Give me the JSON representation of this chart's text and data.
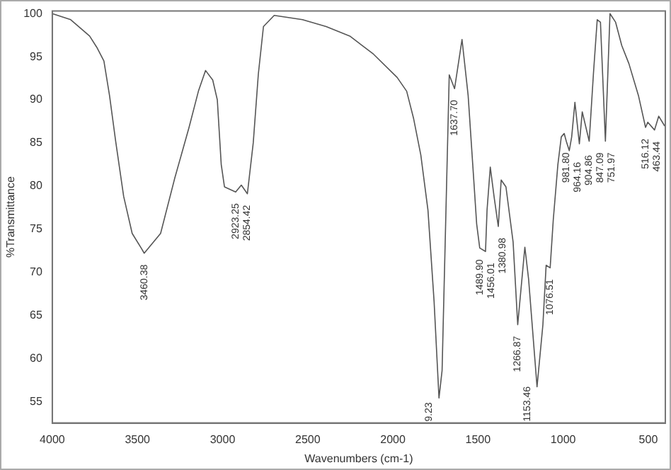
{
  "chart_data": {
    "type": "line",
    "xlabel": "Wavenumbers (cm-1)",
    "ylabel": "%Transmittance",
    "xlim": [
      4000,
      400
    ],
    "xticks": [
      4000,
      3500,
      3000,
      2500,
      2000,
      1500,
      1000,
      500
    ],
    "ylim": [
      52.5,
      100.3
    ],
    "yticks": [
      55,
      60,
      65,
      70,
      75,
      80,
      85,
      90,
      95,
      100
    ],
    "grid": false,
    "legend": false,
    "marker": "none",
    "line_style": "solid",
    "series": [
      {
        "color": "#555555",
        "x": [
          4000,
          3892,
          3781,
          3739,
          3697,
          3664,
          3628,
          3581,
          3531,
          3475,
          3460.38,
          3364,
          3281,
          3197,
          3142,
          3100,
          3058,
          3031,
          3008,
          2989,
          2923.25,
          2890,
          2854.42,
          2820,
          2790,
          2760,
          2697,
          2531,
          2392,
          2253,
          2114,
          1975,
          1919,
          1878,
          1836,
          1794,
          1758,
          1729.23,
          1711,
          1669,
          1637.7,
          1594,
          1558,
          1531,
          1508,
          1489.9,
          1456.01,
          1447,
          1428,
          1406,
          1380.98,
          1364,
          1336,
          1294,
          1266.87,
          1225,
          1203,
          1153.46,
          1119,
          1100,
          1076.51,
          1058,
          1031,
          1011,
          994,
          981.8,
          964.16,
          950,
          931,
          904.86,
          888,
          847.09,
          822,
          800,
          781,
          751.97,
          725,
          692,
          656,
          614,
          558,
          516.12,
          503,
          463.44,
          439,
          405
        ],
        "values": [
          100,
          99.3,
          97.4,
          96.1,
          94.5,
          90.5,
          85.2,
          78.8,
          74.5,
          72.7,
          72.2,
          74.5,
          80.9,
          86.8,
          91,
          93.4,
          92.3,
          90,
          82.5,
          79.9,
          79.3,
          80.1,
          79.1,
          85,
          93,
          98.5,
          99.8,
          99.3,
          98.5,
          97.4,
          95.3,
          92.6,
          91,
          87.8,
          83.6,
          77.2,
          66.6,
          55.4,
          58.6,
          92.9,
          91.3,
          97,
          90.5,
          82.5,
          75.6,
          72.8,
          72.4,
          77.2,
          82.2,
          78.8,
          75.3,
          80.7,
          79.9,
          73.5,
          63.9,
          72.9,
          69.2,
          56.7,
          63.9,
          70.8,
          70.5,
          76.1,
          82.5,
          85.7,
          86.1,
          85.2,
          84.1,
          85.7,
          89.7,
          84.9,
          88.6,
          85.2,
          93.1,
          99.3,
          99,
          85.2,
          100,
          99,
          96.3,
          94.2,
          90.5,
          86.8,
          87.4,
          86.5,
          88.1,
          87
        ]
      }
    ],
    "annotations": [
      {
        "text": "3460.38",
        "x": 3460.38,
        "y": 72.2
      },
      {
        "text": "2923.25",
        "x": 2923.25,
        "y": 79.3
      },
      {
        "text": "2854.42",
        "x": 2854.42,
        "y": 79.1
      },
      {
        "text": "9.23",
        "x": 1729.23,
        "y": 55.4
      },
      {
        "text": "1637.70",
        "x": 1637.7,
        "y": 91.3
      },
      {
        "text": "1489.90",
        "x": 1489.9,
        "y": 72.8
      },
      {
        "text": "1456.01",
        "x": 1456.01,
        "y": 72.4
      },
      {
        "text": "1380.98",
        "x": 1380.98,
        "y": 75.3
      },
      {
        "text": "1266.87",
        "x": 1266.87,
        "y": 63.9
      },
      {
        "text": "1153.46",
        "x": 1153.46,
        "y": 56.7
      },
      {
        "text": "1076.51",
        "x": 1076.51,
        "y": 70.5
      },
      {
        "text": "981.80",
        "x": 981.8,
        "y": 85.2
      },
      {
        "text": "964.16",
        "x": 964.16,
        "y": 84.1
      },
      {
        "text": "904.86",
        "x": 904.86,
        "y": 84.9
      },
      {
        "text": "847.09",
        "x": 847.09,
        "y": 85.2
      },
      {
        "text": "751.97",
        "x": 751.97,
        "y": 85.2
      },
      {
        "text": "516.12",
        "x": 516.12,
        "y": 86.8
      },
      {
        "text": "463.44",
        "x": 463.44,
        "y": 86.5
      }
    ]
  }
}
